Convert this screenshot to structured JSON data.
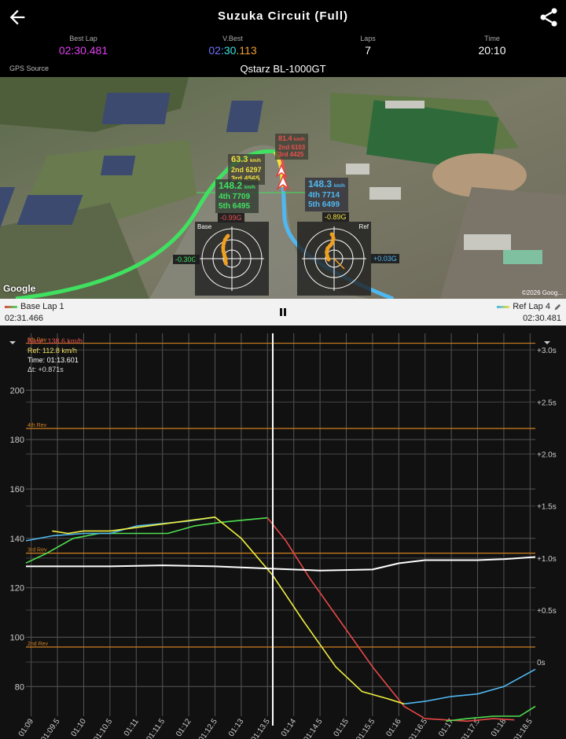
{
  "header": {
    "title": "Suzuka Circuit (Full)",
    "back_icon": "arrow-left-icon",
    "share_icon": "share-icon"
  },
  "stats": {
    "best_lap_label": "Best Lap",
    "best_lap_value": "02:30.481",
    "vbest_label": "V.Best",
    "vbest_parts": [
      "02",
      ":",
      "30",
      ".",
      "113"
    ],
    "laps_label": "Laps",
    "laps_value": "7",
    "time_label": "Time",
    "time_value": "20:10"
  },
  "gps": {
    "label": "GPS Source",
    "device": "Qstarz BL-1000GT"
  },
  "map": {
    "google": "Google",
    "copyright": "©2026 Goog...",
    "base_gauge_label": "Base",
    "ref_gauge_label": "Ref",
    "g_top_left": "-0.99G",
    "g_left": "-0.30G",
    "g_top_right": "-0.89G",
    "g_right": "+0.03G",
    "callouts": [
      {
        "speed": "63.3",
        "unit": "km/h",
        "l1": "2nd 6297",
        "l2": "3rd 4565",
        "color": "#f0e040"
      },
      {
        "speed": "81.4",
        "unit": "km/h",
        "l1": "2nd 6103",
        "l2": "3rd 4425",
        "color": "#e85050"
      },
      {
        "speed": "148.2",
        "unit": "km/h",
        "l1": "4th 7709",
        "l2": "5th 6495",
        "color": "#40e060"
      },
      {
        "speed": "148.3",
        "unit": "km/h",
        "l1": "4th 7714",
        "l2": "5th 6499",
        "color": "#50b8f0"
      }
    ]
  },
  "laps": {
    "base_label": "Base Lap 1",
    "base_time": "02:31.466",
    "ref_label": "Ref Lap 4",
    "ref_time": "02:30.481",
    "base_color": "#e84040",
    "ref_color": "#40b8f0"
  },
  "chart_data": {
    "type": "line",
    "xlabel": "",
    "ylabel": "",
    "xlim": [
      68.9,
      78.6
    ],
    "ylim": [
      68,
      223
    ],
    "y2lim": [
      -0.52,
      3.16
    ],
    "x_ticks": [
      "01:09",
      "01:09.5",
      "01:10",
      "01:10.5",
      "01:11",
      "01:11.5",
      "01:12",
      "01:12.5",
      "01:13",
      "01:13.5",
      "01:14",
      "01:14.5",
      "01:15",
      "01:15.5",
      "01:16",
      "01:16.5",
      "01:17",
      "01:17.5",
      "01:18",
      "01:18.5"
    ],
    "y_ticks": [
      80,
      100,
      120,
      140,
      160,
      180,
      200
    ],
    "y2_ticks": [
      "0s",
      "+0.5s",
      "+1.0s",
      "+1.5s",
      "+2.0s",
      "+2.5s",
      "+3.0s"
    ],
    "y2_tick_values": [
      0,
      0.5,
      1.0,
      1.5,
      2.0,
      2.5,
      3.0
    ],
    "rev_lines": [
      {
        "label": "5th Rev",
        "y": 219
      },
      {
        "label": "4th Rev",
        "y": 184.5
      },
      {
        "label": "3rd Rev",
        "y": 134
      },
      {
        "label": "2nd Rev",
        "y": 96
      }
    ],
    "cursor_x": 73.6,
    "readout": {
      "base": "Base: 138.6 km/h",
      "ref": "Ref: 112.8 km/h",
      "time": "Time: 01:13.601",
      "delta": "Δt: +0.871s"
    },
    "series": [
      {
        "name": "Base Lap 1 speed (green→red)",
        "color": "#50e050",
        "x": [
          68.9,
          69.3,
          69.8,
          70.3,
          70.8,
          71.6,
          72.1,
          72.6,
          73.1,
          73.5
        ],
        "y": [
          130,
          134,
          140,
          142,
          142,
          142,
          145,
          146.5,
          147.5,
          148.3
        ]
      },
      {
        "name": "",
        "color": "#e84848",
        "x": [
          73.5,
          73.85,
          74.3,
          74.9,
          75.5,
          76.1,
          76.5,
          76.9,
          77.3,
          77.8,
          78.2
        ],
        "y": [
          148.3,
          139,
          124,
          106,
          88,
          72,
          67,
          66.5,
          66,
          67,
          66.5
        ]
      },
      {
        "name": "",
        "color": "#50e050",
        "x": [
          76.9,
          77.3,
          77.8,
          78.3,
          78.6
        ],
        "y": [
          66,
          67,
          68,
          68,
          72
        ]
      },
      {
        "name": "Ref Lap 4 speed (blue→yellow)",
        "color": "#50b8f0",
        "x": [
          68.9,
          69.4,
          70.0,
          70.5,
          71.0,
          71.5,
          72.0,
          72.5
        ],
        "y": [
          139,
          141,
          142,
          142,
          145,
          146,
          147,
          148.6
        ]
      },
      {
        "name": "",
        "color": "#f0f040",
        "x": [
          69.4,
          69.7,
          70.0,
          70.5,
          72.5,
          73.0,
          73.6,
          74.2,
          74.8,
          75.3,
          75.8,
          76.1
        ],
        "y": [
          143,
          142,
          143,
          143,
          148.6,
          140,
          125,
          106,
          88,
          78,
          75,
          73
        ]
      },
      {
        "name": "",
        "color": "#50b8f0",
        "x": [
          76.1,
          76.5,
          77.0,
          77.5,
          78.0,
          78.6
        ],
        "y": [
          73,
          74,
          76,
          77,
          80,
          87
        ]
      },
      {
        "name": "Δt",
        "color": "#ffffff",
        "axis": "y2",
        "x": [
          68.9,
          69.5,
          70.5,
          71.5,
          72.5,
          73.5,
          74.5,
          75.5,
          76.0,
          76.5,
          77.5,
          78.0,
          78.6
        ],
        "y": [
          0.92,
          0.92,
          0.92,
          0.93,
          0.92,
          0.9,
          0.88,
          0.89,
          0.95,
          0.98,
          0.98,
          0.99,
          1.01
        ]
      }
    ]
  }
}
